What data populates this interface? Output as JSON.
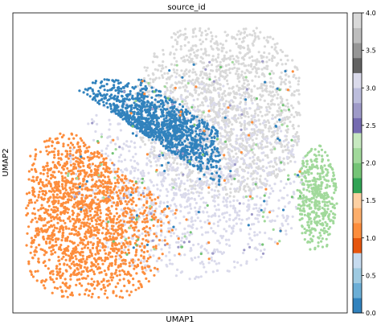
{
  "chart_data": {
    "type": "scatter",
    "title": "source_id",
    "xlabel": "UMAP1",
    "ylabel": "UMAP2",
    "colorbar": {
      "range": [
        0.0,
        4.0
      ],
      "tick_labels": [
        "0.0",
        "0.5",
        "1.0",
        "1.5",
        "2.0",
        "2.5",
        "3.0",
        "3.5",
        "4.0"
      ],
      "colormap": "tab20c",
      "colors": [
        "#3182bd",
        "#6baed6",
        "#9ecae1",
        "#c6dbef",
        "#e6550d",
        "#fd8d3c",
        "#fdae6b",
        "#fdd0a2",
        "#31a354",
        "#74c476",
        "#a1d99b",
        "#c7e9c0",
        "#756bb1",
        "#9e9ac8",
        "#bcbddc",
        "#dadaeb",
        "#636363",
        "#969696",
        "#bdbdbd",
        "#d9d9d9"
      ]
    },
    "clusters": [
      {
        "value": 3.8,
        "color": "#d9d9d9",
        "center": [
          0.64,
          0.68
        ],
        "spread": [
          0.2,
          0.24
        ],
        "extent": "upper-right lobe"
      },
      {
        "value": 2.9,
        "color": "#dadaeb",
        "center": [
          0.55,
          0.42
        ],
        "spread": [
          0.22,
          0.2
        ],
        "extent": "central band"
      },
      {
        "value": 2.1,
        "color": "#a1d99b",
        "center": [
          0.91,
          0.38
        ],
        "spread": [
          0.05,
          0.12
        ],
        "extent": "right edge"
      },
      {
        "value": 0.0,
        "color": "#3182bd",
        "center": [
          0.35,
          0.57
        ],
        "spread": [
          0.16,
          0.1
        ],
        "extent": "diagonal band"
      },
      {
        "value": 1.1,
        "color": "#fd8d3c",
        "center": [
          0.22,
          0.33
        ],
        "spread": [
          0.13,
          0.2
        ],
        "extent": "lower-left lobe"
      }
    ]
  }
}
